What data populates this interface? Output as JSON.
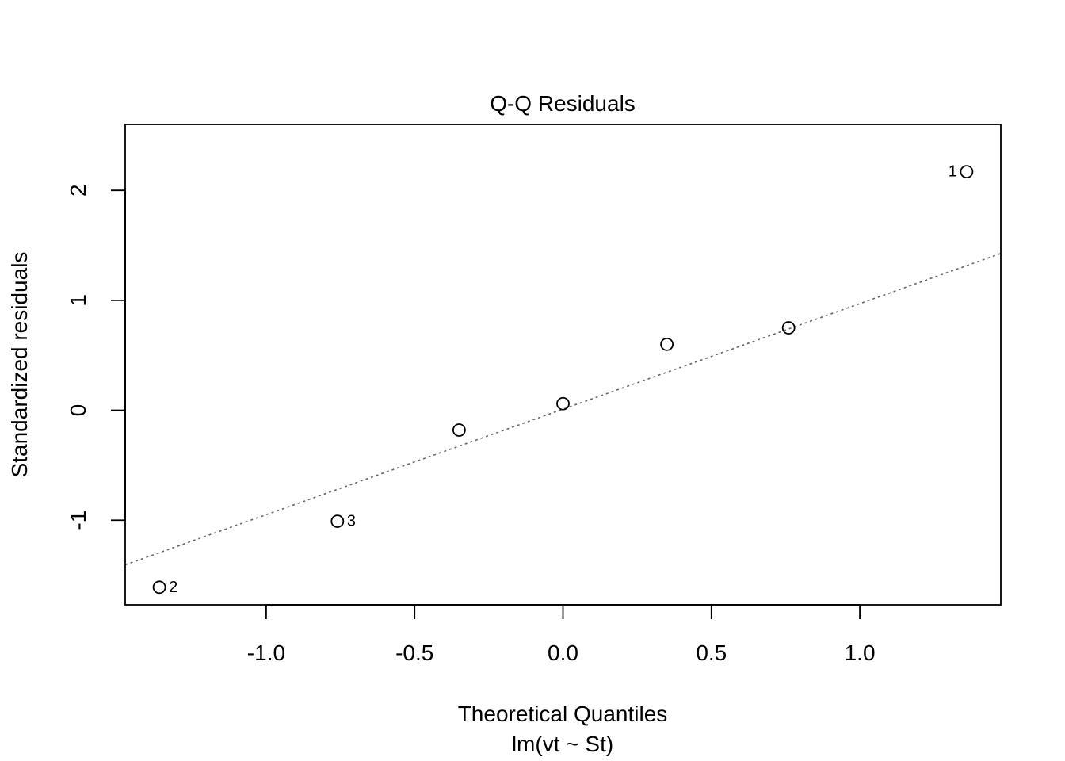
{
  "chart_data": {
    "type": "scatter",
    "title": "Q-Q Residuals",
    "xlabel": "Theoretical Quantiles",
    "xlabel_sub": "lm(vt ~ St)",
    "ylabel": "Standardized residuals",
    "xlim": [
      -1.475,
      1.475
    ],
    "ylim": [
      -1.77,
      2.6
    ],
    "xticks": [
      -1.0,
      -0.5,
      0.0,
      0.5,
      1.0
    ],
    "xtick_labels": [
      "-1.0",
      "-0.5",
      "0.0",
      "0.5",
      "1.0"
    ],
    "yticks": [
      -1,
      0,
      1,
      2
    ],
    "ytick_labels": [
      "-1",
      "0",
      "1",
      "2"
    ],
    "grid": false,
    "points": [
      {
        "x": -1.36,
        "y": -1.61,
        "label": "2"
      },
      {
        "x": -0.76,
        "y": -1.01,
        "label": "3"
      },
      {
        "x": -0.35,
        "y": -0.18,
        "label": ""
      },
      {
        "x": 0.0,
        "y": 0.06,
        "label": ""
      },
      {
        "x": 0.35,
        "y": 0.6,
        "label": ""
      },
      {
        "x": 0.76,
        "y": 0.75,
        "label": ""
      },
      {
        "x": 1.36,
        "y": 2.17,
        "label": "1"
      }
    ],
    "reference_line": {
      "intercept": 0.01,
      "slope": 0.96,
      "style": "dotted",
      "color": "#666666"
    },
    "colors": {
      "points": "#000000",
      "line": "#666666"
    }
  }
}
